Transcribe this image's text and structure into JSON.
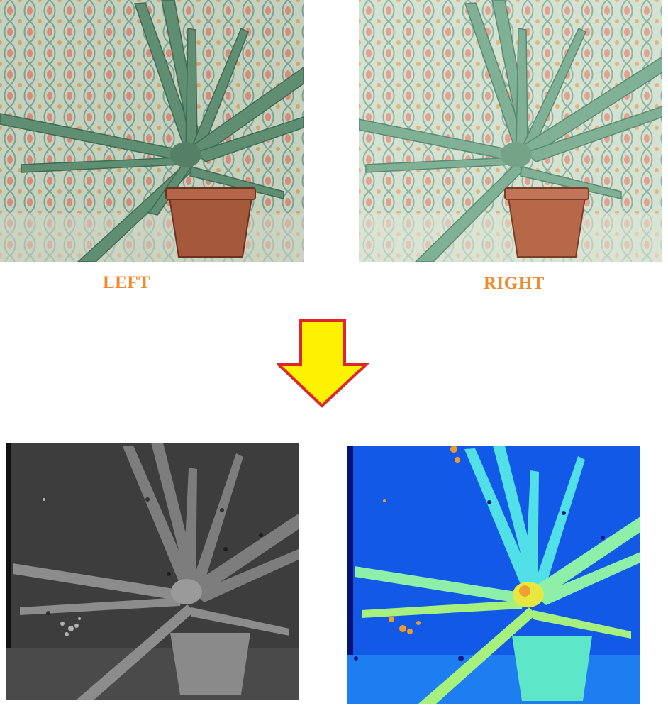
{
  "labels": {
    "left": "LEFT",
    "right": "RIGHT"
  },
  "panels": {
    "left_photo": "aloe-plant-left-view",
    "right_photo": "aloe-plant-right-view",
    "gray_map": "grayscale-disparity-map",
    "color_map": "colormap-disparity-map"
  },
  "arrow": {
    "fill": "#fff200",
    "stroke": "#e0262b",
    "direction": "down"
  },
  "colors": {
    "label": "#f08a2c",
    "wallpaper_bg": "#bfd0bd",
    "plant": "#5e8f73",
    "pot": "#a4573a",
    "gray_bg": "#3c3c3c",
    "jet_bg": "#1158e6"
  }
}
